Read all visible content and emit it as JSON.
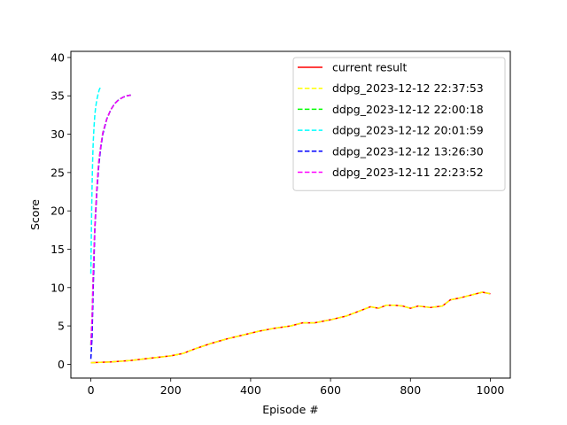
{
  "chart_data": {
    "type": "line",
    "title": "",
    "xlabel": "Episode #",
    "ylabel": "Score",
    "xlim": [
      -50,
      1050
    ],
    "ylim": [
      -1.8,
      40.8
    ],
    "xticks": [
      0,
      200,
      400,
      600,
      800,
      1000
    ],
    "yticks": [
      0,
      5,
      10,
      15,
      20,
      25,
      30,
      35,
      40
    ],
    "grid": false,
    "legend_position": "top-right",
    "series": [
      {
        "name": "current result",
        "color": "#ff0000",
        "dash": "solid",
        "x": [
          0,
          50,
          100,
          150,
          200,
          230,
          260,
          300,
          340,
          380,
          420,
          460,
          500,
          530,
          560,
          600,
          640,
          680,
          700,
          720,
          740,
          760,
          780,
          800,
          820,
          850,
          880,
          900,
          920,
          950,
          980,
          1000
        ],
        "y": [
          0.2,
          0.3,
          0.5,
          0.8,
          1.1,
          1.4,
          2.0,
          2.7,
          3.3,
          3.8,
          4.3,
          4.7,
          5.0,
          5.4,
          5.4,
          5.8,
          6.3,
          7.1,
          7.5,
          7.3,
          7.7,
          7.7,
          7.6,
          7.3,
          7.6,
          7.4,
          7.6,
          8.4,
          8.6,
          9.0,
          9.4,
          9.2
        ]
      },
      {
        "name": "ddpg_2023-12-12 22:37:53",
        "color": "#ffff00",
        "dash": "dashed",
        "x": [
          0,
          50,
          100,
          150,
          200,
          230,
          260,
          300,
          340,
          380,
          420,
          460,
          500,
          530,
          560,
          600,
          640,
          680,
          700,
          720,
          740,
          760,
          780,
          800,
          820,
          850,
          880,
          900,
          920,
          950,
          980,
          1000
        ],
        "y": [
          0.2,
          0.3,
          0.5,
          0.8,
          1.1,
          1.4,
          2.0,
          2.7,
          3.3,
          3.8,
          4.3,
          4.7,
          5.0,
          5.4,
          5.4,
          5.8,
          6.3,
          7.1,
          7.5,
          7.3,
          7.7,
          7.7,
          7.6,
          7.3,
          7.6,
          7.4,
          7.6,
          8.4,
          8.6,
          9.0,
          9.4,
          9.2
        ]
      },
      {
        "name": "ddpg_2023-12-12 22:00:18",
        "color": "#00ff00",
        "dash": "dashed",
        "x": [
          0,
          3,
          6,
          10,
          15,
          20,
          25,
          30,
          40,
          50,
          60,
          70,
          80,
          90,
          100
        ],
        "y": [
          2.5,
          6,
          12,
          18,
          23,
          26.5,
          28.5,
          30.2,
          32,
          33.2,
          34,
          34.5,
          34.8,
          35,
          35.1
        ]
      },
      {
        "name": "ddpg_2023-12-12 20:01:59",
        "color": "#00ffff",
        "dash": "dashed",
        "x": [
          0,
          1,
          2,
          3,
          4,
          5,
          6,
          8,
          10,
          12,
          15,
          18,
          21,
          25
        ],
        "y": [
          11.8,
          16,
          20,
          23,
          25.5,
          27.5,
          29,
          31,
          32.5,
          33.5,
          34.5,
          35.2,
          35.8,
          36.2
        ]
      },
      {
        "name": "ddpg_2023-12-12 13:26:30",
        "color": "#0000ff",
        "dash": "dashed",
        "x": [
          0,
          3,
          6,
          10,
          15,
          20,
          25,
          30,
          40,
          50,
          60,
          70,
          80,
          90,
          100
        ],
        "y": [
          0.7,
          3.5,
          10,
          17.5,
          22.5,
          26,
          28.3,
          30,
          32,
          33.2,
          34,
          34.5,
          34.8,
          35,
          35.1
        ]
      },
      {
        "name": "ddpg_2023-12-11 22:23:52",
        "color": "#ff00ff",
        "dash": "dashed",
        "x": [
          0,
          3,
          6,
          10,
          15,
          20,
          25,
          30,
          40,
          50,
          60,
          70,
          80,
          90,
          100
        ],
        "y": [
          2.5,
          6,
          12,
          18,
          23,
          26.5,
          28.5,
          30.2,
          32,
          33.2,
          34,
          34.5,
          34.8,
          35,
          35.1
        ]
      }
    ]
  }
}
